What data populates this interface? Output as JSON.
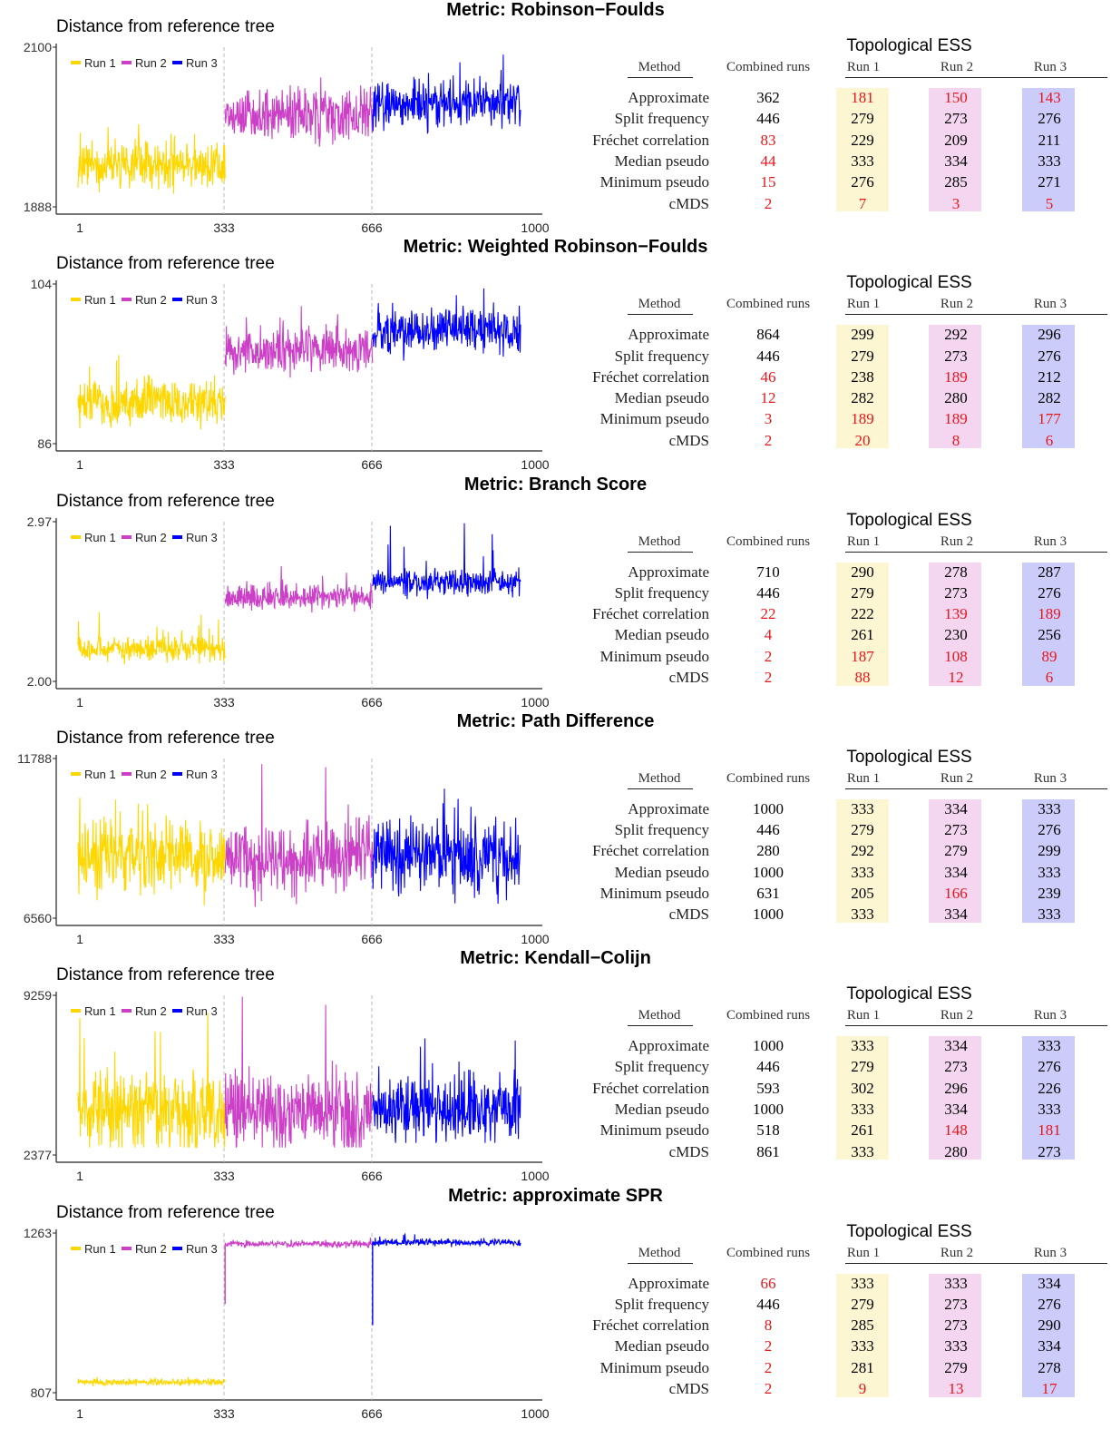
{
  "panels": [
    {
      "title": "Metric: Robinson−Foulds",
      "chart_data": {
        "type": "line",
        "ylabel": "Distance from reference tree",
        "ylim": [
          1888,
          2100
        ],
        "y_ticks": [
          "2100",
          "1888"
        ],
        "x_ticks": [
          "1",
          "333",
          "666",
          "1000"
        ],
        "x_range": [
          1,
          1000
        ],
        "legend": [
          "Run 1",
          "Run 2",
          "Run 3"
        ],
        "segments": [
          {
            "name": "Run 1",
            "x_start": 1,
            "x_end": 333,
            "mean": 1943,
            "spread": 16,
            "min": 1896,
            "max": 1998
          },
          {
            "name": "Run 2",
            "x_start": 333,
            "x_end": 666,
            "mean": 2009,
            "spread": 18,
            "min": 1950,
            "max": 2060
          },
          {
            "name": "Run 3",
            "x_start": 666,
            "x_end": 1000,
            "mean": 2025,
            "spread": 16,
            "min": 1985,
            "max": 2090
          }
        ]
      },
      "table": {
        "title": "Topological ESS",
        "headers": [
          "Method",
          "Combined runs",
          "Run 1",
          "Run 2",
          "Run 3"
        ],
        "rows": [
          {
            "method": "Approximate",
            "values": [
              "362",
              "181",
              "150",
              "143"
            ],
            "red": [
              false,
              true,
              true,
              true
            ]
          },
          {
            "method": "Split frequency",
            "values": [
              "446",
              "279",
              "273",
              "276"
            ],
            "red": [
              false,
              false,
              false,
              false
            ]
          },
          {
            "method": "Fréchet correlation",
            "values": [
              "83",
              "229",
              "209",
              "211"
            ],
            "red": [
              true,
              false,
              false,
              false
            ]
          },
          {
            "method": "Median pseudo",
            "values": [
              "44",
              "333",
              "334",
              "333"
            ],
            "red": [
              true,
              false,
              false,
              false
            ]
          },
          {
            "method": "Minimum pseudo",
            "values": [
              "15",
              "276",
              "285",
              "271"
            ],
            "red": [
              true,
              false,
              false,
              false
            ]
          },
          {
            "method": "cMDS",
            "values": [
              "2",
              "7",
              "3",
              "5"
            ],
            "red": [
              true,
              true,
              true,
              true
            ]
          }
        ]
      }
    },
    {
      "title": "Metric: Weighted Robinson−Foulds",
      "chart_data": {
        "type": "line",
        "ylabel": "Distance from reference tree",
        "ylim": [
          86,
          104
        ],
        "y_ticks": [
          "104",
          "86"
        ],
        "x_ticks": [
          "1",
          "333",
          "666",
          "1000"
        ],
        "x_range": [
          1,
          1000
        ],
        "legend": [
          "Run 1",
          "Run 2",
          "Run 3"
        ],
        "segments": [
          {
            "name": "Run 1",
            "x_start": 1,
            "x_end": 333,
            "mean": 90.8,
            "spread": 1.4,
            "min": 86.4,
            "max": 96
          },
          {
            "name": "Run 2",
            "x_start": 333,
            "x_end": 666,
            "mean": 96.5,
            "spread": 1.3,
            "min": 92.5,
            "max": 101.5
          },
          {
            "name": "Run 3",
            "x_start": 666,
            "x_end": 1000,
            "mean": 98.7,
            "spread": 1.3,
            "min": 95,
            "max": 103.5
          }
        ]
      },
      "table": {
        "title": "Topological ESS",
        "headers": [
          "Method",
          "Combined runs",
          "Run 1",
          "Run 2",
          "Run 3"
        ],
        "rows": [
          {
            "method": "Approximate",
            "values": [
              "864",
              "299",
              "292",
              "296"
            ],
            "red": [
              false,
              false,
              false,
              false
            ]
          },
          {
            "method": "Split frequency",
            "values": [
              "446",
              "279",
              "273",
              "276"
            ],
            "red": [
              false,
              false,
              false,
              false
            ]
          },
          {
            "method": "Fréchet correlation",
            "values": [
              "46",
              "238",
              "189",
              "212"
            ],
            "red": [
              true,
              false,
              true,
              false
            ]
          },
          {
            "method": "Median pseudo",
            "values": [
              "12",
              "282",
              "280",
              "282"
            ],
            "red": [
              true,
              false,
              false,
              false
            ]
          },
          {
            "method": "Minimum pseudo",
            "values": [
              "3",
              "189",
              "189",
              "177"
            ],
            "red": [
              true,
              true,
              true,
              true
            ]
          },
          {
            "method": "cMDS",
            "values": [
              "2",
              "20",
              "8",
              "6"
            ],
            "red": [
              true,
              true,
              true,
              true
            ]
          }
        ]
      }
    },
    {
      "title": "Metric: Branch Score",
      "chart_data": {
        "type": "line",
        "ylabel": "Distance from reference tree",
        "ylim": [
          2.0,
          2.97
        ],
        "y_ticks": [
          "2.97",
          "2.00"
        ],
        "x_ticks": [
          "1",
          "333",
          "666",
          "1000"
        ],
        "x_range": [
          1,
          1000
        ],
        "legend": [
          "Run 1",
          "Run 2",
          "Run 3"
        ],
        "segments": [
          {
            "name": "Run 1",
            "x_start": 1,
            "x_end": 333,
            "mean": 2.2,
            "spread": 0.04,
            "min": 2.02,
            "max": 2.42
          },
          {
            "name": "Run 2",
            "x_start": 333,
            "x_end": 666,
            "mean": 2.51,
            "spread": 0.04,
            "min": 2.4,
            "max": 2.7
          },
          {
            "name": "Run 3",
            "x_start": 666,
            "x_end": 1000,
            "mean": 2.6,
            "spread": 0.04,
            "min": 2.5,
            "max": 2.96
          }
        ]
      },
      "table": {
        "title": "Topological ESS",
        "headers": [
          "Method",
          "Combined runs",
          "Run 1",
          "Run 2",
          "Run 3"
        ],
        "rows": [
          {
            "method": "Approximate",
            "values": [
              "710",
              "290",
              "278",
              "287"
            ],
            "red": [
              false,
              false,
              false,
              false
            ]
          },
          {
            "method": "Split frequency",
            "values": [
              "446",
              "279",
              "273",
              "276"
            ],
            "red": [
              false,
              false,
              false,
              false
            ]
          },
          {
            "method": "Fréchet correlation",
            "values": [
              "22",
              "222",
              "139",
              "189"
            ],
            "red": [
              true,
              false,
              true,
              true
            ]
          },
          {
            "method": "Median pseudo",
            "values": [
              "4",
              "261",
              "230",
              "256"
            ],
            "red": [
              true,
              false,
              false,
              false
            ]
          },
          {
            "method": "Minimum pseudo",
            "values": [
              "2",
              "187",
              "108",
              "89"
            ],
            "red": [
              true,
              true,
              true,
              true
            ]
          },
          {
            "method": "cMDS",
            "values": [
              "2",
              "88",
              "12",
              "6"
            ],
            "red": [
              true,
              true,
              true,
              true
            ]
          }
        ]
      }
    },
    {
      "title": "Metric: Path Difference",
      "chart_data": {
        "type": "line",
        "ylabel": "Distance from reference tree",
        "ylim": [
          6560,
          11788
        ],
        "y_ticks": [
          "11788",
          "6560"
        ],
        "x_ticks": [
          "1",
          "333",
          "666",
          "1000"
        ],
        "x_range": [
          1,
          1000
        ],
        "legend": [
          "Run 1",
          "Run 2",
          "Run 3"
        ],
        "segments": [
          {
            "name": "Run 1",
            "x_start": 1,
            "x_end": 333,
            "mean": 8600,
            "spread": 650,
            "min": 6800,
            "max": 10500
          },
          {
            "name": "Run 2",
            "x_start": 333,
            "x_end": 666,
            "mean": 8500,
            "spread": 600,
            "min": 6900,
            "max": 11600
          },
          {
            "name": "Run 3",
            "x_start": 666,
            "x_end": 1000,
            "mean": 8600,
            "spread": 600,
            "min": 7000,
            "max": 10800
          }
        ]
      },
      "table": {
        "title": "Topological ESS",
        "headers": [
          "Method",
          "Combined runs",
          "Run 1",
          "Run 2",
          "Run 3"
        ],
        "rows": [
          {
            "method": "Approximate",
            "values": [
              "1000",
              "333",
              "334",
              "333"
            ],
            "red": [
              false,
              false,
              false,
              false
            ]
          },
          {
            "method": "Split frequency",
            "values": [
              "446",
              "279",
              "273",
              "276"
            ],
            "red": [
              false,
              false,
              false,
              false
            ]
          },
          {
            "method": "Fréchet correlation",
            "values": [
              "280",
              "292",
              "279",
              "299"
            ],
            "red": [
              false,
              false,
              false,
              false
            ]
          },
          {
            "method": "Median pseudo",
            "values": [
              "1000",
              "333",
              "334",
              "333"
            ],
            "red": [
              false,
              false,
              false,
              false
            ]
          },
          {
            "method": "Minimum pseudo",
            "values": [
              "631",
              "205",
              "166",
              "239"
            ],
            "red": [
              false,
              false,
              true,
              false
            ]
          },
          {
            "method": "cMDS",
            "values": [
              "1000",
              "333",
              "334",
              "333"
            ],
            "red": [
              false,
              false,
              false,
              false
            ]
          }
        ]
      }
    },
    {
      "title": "Metric: Kendall−Colijn",
      "chart_data": {
        "type": "line",
        "ylabel": "Distance from reference tree",
        "ylim": [
          2377,
          9259
        ],
        "y_ticks": [
          "9259",
          "2377"
        ],
        "x_ticks": [
          "1",
          "333",
          "666",
          "1000"
        ],
        "x_range": [
          1,
          1000
        ],
        "legend": [
          "Run 1",
          "Run 2",
          "Run 3"
        ],
        "segments": [
          {
            "name": "Run 1",
            "x_start": 1,
            "x_end": 333,
            "mean": 4300,
            "spread": 900,
            "min": 2700,
            "max": 8500
          },
          {
            "name": "Run 2",
            "x_start": 333,
            "x_end": 666,
            "mean": 4200,
            "spread": 850,
            "min": 2700,
            "max": 9200
          },
          {
            "name": "Run 3",
            "x_start": 666,
            "x_end": 1000,
            "mean": 4400,
            "spread": 800,
            "min": 2900,
            "max": 7400
          }
        ]
      },
      "table": {
        "title": "Topological ESS",
        "headers": [
          "Method",
          "Combined runs",
          "Run 1",
          "Run 2",
          "Run 3"
        ],
        "rows": [
          {
            "method": "Approximate",
            "values": [
              "1000",
              "333",
              "334",
              "333"
            ],
            "red": [
              false,
              false,
              false,
              false
            ]
          },
          {
            "method": "Split frequency",
            "values": [
              "446",
              "279",
              "273",
              "276"
            ],
            "red": [
              false,
              false,
              false,
              false
            ]
          },
          {
            "method": "Fréchet correlation",
            "values": [
              "593",
              "302",
              "296",
              "226"
            ],
            "red": [
              false,
              false,
              false,
              false
            ]
          },
          {
            "method": "Median pseudo",
            "values": [
              "1000",
              "333",
              "334",
              "333"
            ],
            "red": [
              false,
              false,
              false,
              false
            ]
          },
          {
            "method": "Minimum pseudo",
            "values": [
              "518",
              "261",
              "148",
              "181"
            ],
            "red": [
              false,
              false,
              true,
              true
            ]
          },
          {
            "method": "cMDS",
            "values": [
              "861",
              "333",
              "280",
              "273"
            ],
            "red": [
              false,
              false,
              false,
              false
            ]
          }
        ]
      }
    },
    {
      "title": "Metric: approximate SPR",
      "chart_data": {
        "type": "line",
        "ylabel": "Distance from reference tree",
        "ylim": [
          807,
          1263
        ],
        "y_ticks": [
          "1263",
          "807"
        ],
        "x_ticks": [
          "1",
          "333",
          "666",
          "1000"
        ],
        "x_range": [
          1,
          1000
        ],
        "legend": [
          "Run 1",
          "Run 2",
          "Run 3"
        ],
        "segments": [
          {
            "name": "Run 1",
            "x_start": 1,
            "x_end": 333,
            "mean": 837,
            "spread": 5,
            "min": 822,
            "max": 852
          },
          {
            "name": "Run 2",
            "x_start": 333,
            "x_end": 666,
            "mean": 1232,
            "spread": 5,
            "min": 1215,
            "max": 1250
          },
          {
            "name": "Run 3",
            "x_start": 666,
            "x_end": 1000,
            "mean": 1236,
            "spread": 5,
            "min": 1220,
            "max": 1262
          }
        ],
        "annotations": [
          {
            "run": "Run 2",
            "x": 333,
            "value": 1060
          },
          {
            "run": "Run 3",
            "x": 666,
            "value": 1000
          }
        ]
      },
      "table": {
        "title": "Topological ESS",
        "headers": [
          "Method",
          "Combined runs",
          "Run 1",
          "Run 2",
          "Run 3"
        ],
        "rows": [
          {
            "method": "Approximate",
            "values": [
              "66",
              "333",
              "333",
              "334"
            ],
            "red": [
              true,
              false,
              false,
              false
            ]
          },
          {
            "method": "Split frequency",
            "values": [
              "446",
              "279",
              "273",
              "276"
            ],
            "red": [
              false,
              false,
              false,
              false
            ]
          },
          {
            "method": "Fréchet correlation",
            "values": [
              "8",
              "285",
              "273",
              "290"
            ],
            "red": [
              true,
              false,
              false,
              false
            ]
          },
          {
            "method": "Median pseudo",
            "values": [
              "2",
              "333",
              "333",
              "334"
            ],
            "red": [
              true,
              false,
              false,
              false
            ]
          },
          {
            "method": "Minimum pseudo",
            "values": [
              "2",
              "281",
              "279",
              "278"
            ],
            "red": [
              true,
              false,
              false,
              false
            ]
          },
          {
            "method": "cMDS",
            "values": [
              "2",
              "9",
              "13",
              "17"
            ],
            "red": [
              true,
              true,
              true,
              true
            ]
          }
        ]
      }
    }
  ],
  "colors": {
    "run1": "#ffd700",
    "run2": "#cc3fc7",
    "run3": "#0000ff",
    "red": "#e8161b"
  }
}
